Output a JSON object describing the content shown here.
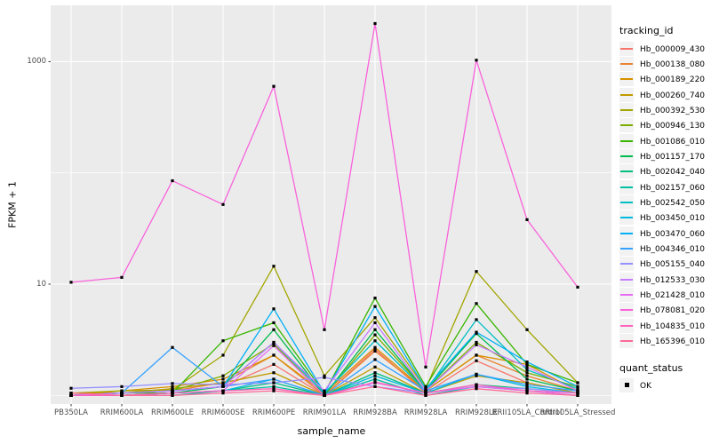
{
  "style": {
    "background": "#ffffff",
    "panel_bg": "#ebebeb",
    "grid_color": "#ffffff",
    "tick_label_color": "#4d4d4d",
    "tick_mark_color": "#333333",
    "point_color": "#000000",
    "legend_key_bg": "#f2f2f2"
  },
  "axes": {
    "y_title": "FPKM + 1",
    "x_title": "sample_name",
    "y_ticks": [
      {
        "label": "1000",
        "value": 1000
      },
      {
        "label": "10",
        "value": 10
      }
    ],
    "y_minor": [
      100,
      1
    ],
    "y_scale": "log10"
  },
  "legend": {
    "tracking_title": "tracking_id",
    "quant_title": "quant_status",
    "quant_items": [
      {
        "label": "OK",
        "marker": "black-square"
      }
    ]
  },
  "chart_data": {
    "type": "line",
    "title": "",
    "xlabel": "sample_name",
    "ylabel": "FPKM + 1",
    "y_scale": "log10",
    "ylim": [
      0.85,
      3200
    ],
    "y_tick_values": [
      10,
      1000
    ],
    "y_minor_values": [
      1,
      100
    ],
    "grid": true,
    "legend_position": "right",
    "point_marker": {
      "shape": "square",
      "color": "#000000",
      "size": 3.2
    },
    "categories": [
      "PB350LA",
      "RRIM600LA",
      "RRIM600LE",
      "RRIM600SE",
      "RRIM600PE",
      "RRIM901LA",
      "RRIM928BA",
      "RRIM928LA",
      "RRIM928LE",
      "RRII105LA_Control",
      "RRII105LA_Stressed"
    ],
    "series": [
      {
        "name": "Hb_000009_430",
        "color": "#F8766D",
        "values": [
          1.05,
          1.05,
          1.1,
          1.2,
          1.9,
          1.0,
          2.6,
          1.05,
          2.05,
          1.3,
          1.05
        ]
      },
      {
        "name": "Hb_000138_080",
        "color": "#EA8331",
        "values": [
          1.0,
          1.05,
          1.1,
          1.3,
          2.3,
          1.0,
          2.5,
          1.1,
          2.3,
          1.5,
          1.1
        ]
      },
      {
        "name": "Hb_000189_220",
        "color": "#D89000",
        "values": [
          1.0,
          1.1,
          1.2,
          1.4,
          2.3,
          1.05,
          2.7,
          1.1,
          2.3,
          1.9,
          1.1
        ]
      },
      {
        "name": "Hb_000260_740",
        "color": "#C09B00",
        "values": [
          1.0,
          1.05,
          1.15,
          1.3,
          1.6,
          1.0,
          1.8,
          1.05,
          1.5,
          1.3,
          1.05
        ]
      },
      {
        "name": "Hb_000392_530",
        "color": "#A3A500",
        "values": [
          1.05,
          1.1,
          1.12,
          2.3,
          14.5,
          1.5,
          5.0,
          1.15,
          13.0,
          3.9,
          1.3
        ]
      },
      {
        "name": "Hb_000946_130",
        "color": "#7CAE00",
        "values": [
          1.0,
          1.05,
          1.1,
          1.5,
          2.9,
          1.0,
          3.5,
          1.1,
          3.0,
          1.6,
          1.2
        ]
      },
      {
        "name": "Hb_001086_010",
        "color": "#39B600",
        "values": [
          1.0,
          1.05,
          1.05,
          3.1,
          4.5,
          1.05,
          7.5,
          1.2,
          6.7,
          1.9,
          1.3
        ]
      },
      {
        "name": "Hb_001157_170",
        "color": "#00BB4E",
        "values": [
          1.0,
          1.0,
          1.05,
          1.2,
          3.9,
          1.0,
          3.9,
          1.1,
          3.6,
          1.4,
          1.1
        ]
      },
      {
        "name": "Hb_002042_040",
        "color": "#00BF7D",
        "values": [
          1.0,
          1.0,
          1.05,
          1.1,
          1.3,
          1.0,
          1.6,
          1.05,
          1.25,
          1.15,
          1.05
        ]
      },
      {
        "name": "Hb_002157_060",
        "color": "#00C1A3",
        "values": [
          1.0,
          1.0,
          1.0,
          1.1,
          1.2,
          1.0,
          1.4,
          1.0,
          1.2,
          1.1,
          1.0
        ]
      },
      {
        "name": "Hb_002542_050",
        "color": "#00BFC4",
        "values": [
          1.0,
          1.05,
          1.1,
          1.2,
          3.0,
          1.05,
          3.1,
          1.1,
          4.8,
          1.7,
          1.15
        ]
      },
      {
        "name": "Hb_003450_010",
        "color": "#00BAE0",
        "values": [
          1.0,
          1.0,
          1.05,
          1.1,
          1.4,
          1.0,
          1.5,
          1.05,
          1.55,
          1.2,
          1.05
        ]
      },
      {
        "name": "Hb_003470_060",
        "color": "#00B0F6",
        "values": [
          1.0,
          1.05,
          1.1,
          1.2,
          6.0,
          1.05,
          6.3,
          1.15,
          3.7,
          2.0,
          1.2
        ]
      },
      {
        "name": "Hb_004346_010",
        "color": "#35A2FF",
        "values": [
          1.0,
          1.05,
          2.7,
          1.2,
          1.4,
          1.0,
          2.1,
          1.1,
          1.55,
          1.25,
          1.1
        ]
      },
      {
        "name": "Hb_005155_040",
        "color": "#9590FF",
        "values": [
          1.16,
          1.2,
          1.28,
          1.25,
          1.3,
          1.45,
          1.2,
          1.05,
          1.2,
          1.15,
          1.05
        ]
      },
      {
        "name": "Hb_012533_030",
        "color": "#C77CFF",
        "values": [
          1.0,
          1.05,
          1.1,
          1.2,
          3.0,
          1.1,
          4.5,
          1.1,
          2.85,
          1.8,
          1.1
        ]
      },
      {
        "name": "Hb_021428_010",
        "color": "#E76BF3",
        "values": [
          1.0,
          1.0,
          1.05,
          1.1,
          2.8,
          1.0,
          1.3,
          1.05,
          1.2,
          1.1,
          1.0
        ]
      },
      {
        "name": "Hb_078081_020",
        "color": "#FA62DB",
        "values": [
          10.4,
          11.5,
          85,
          52,
          600,
          3.9,
          2200,
          1.8,
          1030,
          38,
          9.4
        ]
      },
      {
        "name": "Hb_104835_010",
        "color": "#FF62BC",
        "values": [
          1.0,
          1.0,
          1.05,
          1.1,
          1.15,
          1.0,
          1.32,
          1.05,
          1.25,
          1.1,
          1.05
        ]
      },
      {
        "name": "Hb_165396_010",
        "color": "#FF6A98",
        "values": [
          1.05,
          1.0,
          1.0,
          1.05,
          1.1,
          1.0,
          1.2,
          1.0,
          1.15,
          1.05,
          1.0
        ]
      }
    ]
  }
}
